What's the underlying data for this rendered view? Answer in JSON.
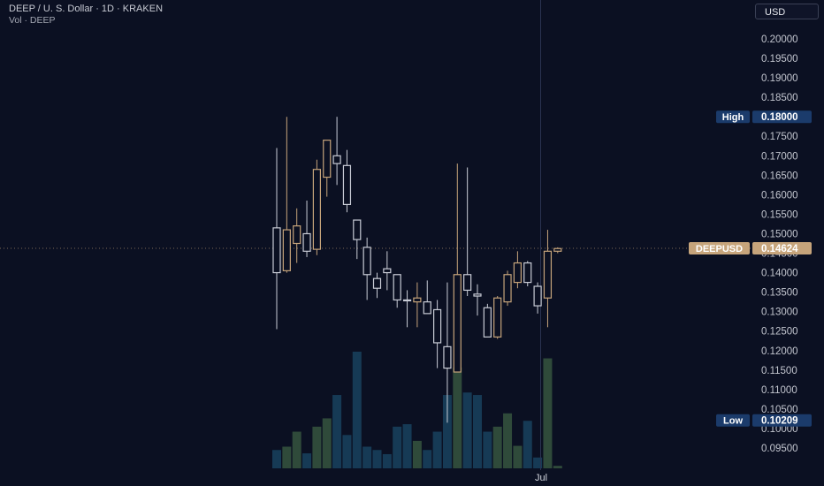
{
  "header": {
    "title": "DEEP / U. S. Dollar · 1D · KRAKEN",
    "volume_label": "Vol · DEEP"
  },
  "currency_button": "USD",
  "colors": {
    "background": "#0b1022",
    "up_candle": "#c6a47b",
    "down_candle": "#c9ccd6",
    "volume_up": "#2f4a3a",
    "volume_down": "#163a55",
    "high_badge": "#1b3b6b",
    "low_badge": "#1b3b6b",
    "last_price_badge": "#c6a47b"
  },
  "markers": {
    "high": {
      "label": "High",
      "value": "0.18000"
    },
    "low": {
      "label": "Low",
      "value": "0.10209"
    },
    "last": {
      "label": "DEEPUSD",
      "value": "0.14624"
    }
  },
  "chart_data": {
    "type": "candlestick",
    "symbol": "DEEPUSD",
    "x_labels": [
      {
        "index": 26,
        "label": "Jul"
      }
    ],
    "y_ticks": [
      "0.20000",
      "0.19500",
      "0.19000",
      "0.18500",
      "0.18000",
      "0.17500",
      "0.17000",
      "0.16500",
      "0.16000",
      "0.15500",
      "0.15000",
      "0.14500",
      "0.14000",
      "0.13500",
      "0.13000",
      "0.12500",
      "0.12000",
      "0.11500",
      "0.11000",
      "0.10500",
      "0.10000",
      "0.09500"
    ],
    "ylim": [
      0.0935,
      0.2015
    ],
    "candles": [
      {
        "o": 0.1515,
        "h": 0.172,
        "l": 0.1255,
        "c": 0.14
      },
      {
        "o": 0.1405,
        "h": 0.18,
        "l": 0.14,
        "c": 0.151
      },
      {
        "o": 0.1475,
        "h": 0.1565,
        "l": 0.1425,
        "c": 0.152
      },
      {
        "o": 0.15,
        "h": 0.1585,
        "l": 0.144,
        "c": 0.1455
      },
      {
        "o": 0.146,
        "h": 0.169,
        "l": 0.1445,
        "c": 0.1665
      },
      {
        "o": 0.1645,
        "h": 0.1735,
        "l": 0.1595,
        "c": 0.174
      },
      {
        "o": 0.17,
        "h": 0.18,
        "l": 0.1625,
        "c": 0.168
      },
      {
        "o": 0.1675,
        "h": 0.1715,
        "l": 0.1555,
        "c": 0.1575
      },
      {
        "o": 0.1535,
        "h": 0.1535,
        "l": 0.1435,
        "c": 0.1485
      },
      {
        "o": 0.1465,
        "h": 0.149,
        "l": 0.133,
        "c": 0.1395
      },
      {
        "o": 0.1385,
        "h": 0.14,
        "l": 0.1335,
        "c": 0.136
      },
      {
        "o": 0.141,
        "h": 0.1455,
        "l": 0.1355,
        "c": 0.14
      },
      {
        "o": 0.1395,
        "h": 0.1395,
        "l": 0.131,
        "c": 0.133
      },
      {
        "o": 0.133,
        "h": 0.1355,
        "l": 0.126,
        "c": 0.1328
      },
      {
        "o": 0.1325,
        "h": 0.1375,
        "l": 0.126,
        "c": 0.1335
      },
      {
        "o": 0.1325,
        "h": 0.138,
        "l": 0.1295,
        "c": 0.1295
      },
      {
        "o": 0.1305,
        "h": 0.133,
        "l": 0.1155,
        "c": 0.122
      },
      {
        "o": 0.121,
        "h": 0.1375,
        "l": 0.1015,
        "c": 0.1155
      },
      {
        "o": 0.1145,
        "h": 0.168,
        "l": 0.1145,
        "c": 0.1395
      },
      {
        "o": 0.1395,
        "h": 0.167,
        "l": 0.134,
        "c": 0.1355
      },
      {
        "o": 0.1345,
        "h": 0.137,
        "l": 0.129,
        "c": 0.134
      },
      {
        "o": 0.131,
        "h": 0.132,
        "l": 0.1235,
        "c": 0.1235
      },
      {
        "o": 0.1235,
        "h": 0.134,
        "l": 0.123,
        "c": 0.1335
      },
      {
        "o": 0.1325,
        "h": 0.1405,
        "l": 0.1315,
        "c": 0.1395
      },
      {
        "o": 0.1375,
        "h": 0.1455,
        "l": 0.136,
        "c": 0.1425
      },
      {
        "o": 0.1425,
        "h": 0.143,
        "l": 0.1365,
        "c": 0.1375
      },
      {
        "o": 0.1365,
        "h": 0.1375,
        "l": 0.1295,
        "c": 0.1315
      },
      {
        "o": 0.1335,
        "h": 0.151,
        "l": 0.126,
        "c": 0.1455
      },
      {
        "o": 0.1455,
        "h": 0.1465,
        "l": 0.145,
        "c": 0.1462
      }
    ],
    "volume": [
      0.22,
      0.26,
      0.44,
      0.18,
      0.5,
      0.6,
      0.88,
      0.4,
      1.4,
      0.26,
      0.22,
      0.17,
      0.5,
      0.53,
      0.33,
      0.22,
      0.44,
      0.88,
      1.21,
      0.91,
      0.88,
      0.44,
      0.5,
      0.66,
      0.27,
      0.57,
      0.13,
      1.32,
      0.03
    ],
    "volume_max": 1.4
  }
}
